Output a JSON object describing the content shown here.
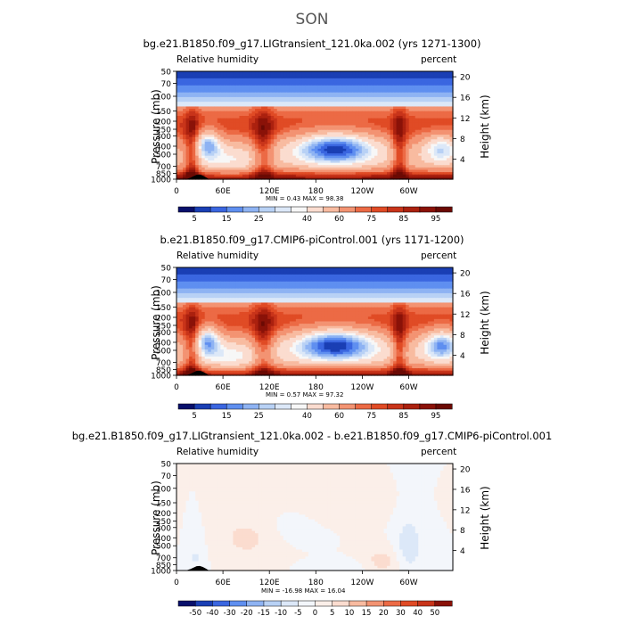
{
  "page": {
    "title": "SON"
  },
  "panels": [
    {
      "title": "bg.e21.B1850.f09_g17.LIGtransient_121.0ka.002 (yrs 1271-1300)",
      "variable": "Relative humidity",
      "units": "percent",
      "stats": "MIN =    0.43   MAX =   98.38"
    },
    {
      "title": "b.e21.B1850.f09_g17.CMIP6-piControl.001 (yrs 1171-1200)",
      "variable": "Relative humidity",
      "units": "percent",
      "stats": "MIN =    0.57   MAX =   97.32"
    },
    {
      "title": "bg.e21.B1850.f09_g17.LIGtransient_121.0ka.002 - b.e21.B1850.f09_g17.CMIP6-piControl.001",
      "variable": "Relative humidity",
      "units": "percent",
      "stats": "MIN =  -16.98   MAX =   16.04"
    }
  ],
  "axes": {
    "ylabel": "Pressure (mb)",
    "ylabel_right": "Height (km)"
  },
  "chart_data": [
    {
      "type": "heatmap",
      "subtype": "filled-contour",
      "x_ticks": [
        "0",
        "60E",
        "120E",
        "180",
        "120W",
        "60W"
      ],
      "x_values": [
        0,
        60,
        120,
        180,
        240,
        300
      ],
      "xlim": [
        0,
        357
      ],
      "y_ticks": [
        "50",
        "70",
        "100",
        "150",
        "200",
        "250",
        "300",
        "400",
        "500",
        "700",
        "850",
        "1000"
      ],
      "y_values": [
        50,
        70,
        100,
        150,
        200,
        250,
        300,
        400,
        500,
        700,
        850,
        1000
      ],
      "ylim_pressure": [
        1000,
        50
      ],
      "y_scale": "log",
      "right_ticks": [
        "20",
        "16",
        "12",
        "8",
        "4"
      ],
      "right_values_km": [
        20,
        16,
        12,
        8,
        4
      ],
      "colorbar_labels": [
        "5",
        "15",
        "25",
        "40",
        "60",
        "75",
        "85",
        "95"
      ],
      "colorbar_levels": [
        0,
        5,
        10,
        15,
        20,
        25,
        30,
        35,
        40,
        50,
        60,
        70,
        75,
        80,
        85,
        90,
        95
      ],
      "colors": [
        "#08106b",
        "#1a3fb4",
        "#3a66e0",
        "#5f8ff0",
        "#8eb3f3",
        "#b8d1f5",
        "#dce8f8",
        "#f7f7f7",
        "#fbdccf",
        "#f8bba0",
        "#f39372",
        "#ec6a45",
        "#e04b25",
        "#c8341a",
        "#ab210f",
        "#8a1208",
        "#6b0a04"
      ],
      "field": "rh",
      "min": 0.43,
      "max": 98.38
    },
    {
      "type": "heatmap",
      "subtype": "filled-contour",
      "x_ticks": [
        "0",
        "60E",
        "120E",
        "180",
        "120W",
        "60W"
      ],
      "x_values": [
        0,
        60,
        120,
        180,
        240,
        300
      ],
      "xlim": [
        0,
        357
      ],
      "y_ticks": [
        "50",
        "70",
        "100",
        "150",
        "200",
        "250",
        "300",
        "400",
        "500",
        "700",
        "850",
        "1000"
      ],
      "y_values": [
        50,
        70,
        100,
        150,
        200,
        250,
        300,
        400,
        500,
        700,
        850,
        1000
      ],
      "ylim_pressure": [
        1000,
        50
      ],
      "y_scale": "log",
      "right_ticks": [
        "20",
        "16",
        "12",
        "8",
        "4"
      ],
      "right_values_km": [
        20,
        16,
        12,
        8,
        4
      ],
      "colorbar_labels": [
        "5",
        "15",
        "25",
        "40",
        "60",
        "75",
        "85",
        "95"
      ],
      "colorbar_levels": [
        0,
        5,
        10,
        15,
        20,
        25,
        30,
        35,
        40,
        50,
        60,
        70,
        75,
        80,
        85,
        90,
        95
      ],
      "colors": [
        "#08106b",
        "#1a3fb4",
        "#3a66e0",
        "#5f8ff0",
        "#8eb3f3",
        "#b8d1f5",
        "#dce8f8",
        "#f7f7f7",
        "#fbdccf",
        "#f8bba0",
        "#f39372",
        "#ec6a45",
        "#e04b25",
        "#c8341a",
        "#ab210f",
        "#8a1208",
        "#6b0a04"
      ],
      "field": "rh",
      "min": 0.57,
      "max": 97.32
    },
    {
      "type": "heatmap",
      "subtype": "filled-contour",
      "x_ticks": [
        "0",
        "60E",
        "120E",
        "180",
        "120W",
        "60W"
      ],
      "x_values": [
        0,
        60,
        120,
        180,
        240,
        300
      ],
      "xlim": [
        0,
        357
      ],
      "y_ticks": [
        "50",
        "70",
        "100",
        "150",
        "200",
        "250",
        "300",
        "400",
        "500",
        "700",
        "850",
        "1000"
      ],
      "y_values": [
        50,
        70,
        100,
        150,
        200,
        250,
        300,
        400,
        500,
        700,
        850,
        1000
      ],
      "ylim_pressure": [
        1000,
        50
      ],
      "y_scale": "log",
      "right_ticks": [
        "20",
        "16",
        "12",
        "8",
        "4"
      ],
      "right_values_km": [
        20,
        16,
        12,
        8,
        4
      ],
      "colorbar_labels": [
        "-50",
        "-40",
        "-30",
        "-20",
        "-15",
        "-10",
        "-5",
        "0",
        "5",
        "10",
        "15",
        "20",
        "30",
        "40",
        "50"
      ],
      "colorbar_levels": [
        -60,
        -50,
        -40,
        -30,
        -20,
        -15,
        -10,
        -5,
        0,
        5,
        10,
        15,
        20,
        30,
        40,
        50
      ],
      "colors": [
        "#08106b",
        "#1a3fb4",
        "#3a66e0",
        "#5f8ff0",
        "#8eb3f3",
        "#b8d1f5",
        "#dce8f8",
        "#f3f6fb",
        "#fbefe9",
        "#fbdccf",
        "#f8bba0",
        "#f39372",
        "#ec6a45",
        "#e04b25",
        "#c8341a",
        "#8a1208"
      ],
      "field": "diff",
      "min": -16.98,
      "max": 16.04
    }
  ]
}
